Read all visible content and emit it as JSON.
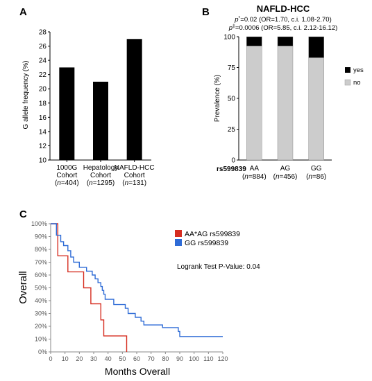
{
  "figure": {
    "panels": [
      "A",
      "B",
      "C"
    ]
  },
  "chart_data": [
    {
      "panel": "A",
      "type": "bar",
      "title": "",
      "ylabel": "G allele frequency (%)",
      "xlabel": "",
      "ylim": [
        10,
        28
      ],
      "yticks": [
        10,
        12,
        14,
        16,
        18,
        20,
        22,
        24,
        26,
        28
      ],
      "categories": [
        {
          "line1": "1000G",
          "line2": "Cohort",
          "n": "n",
          "count": "=404)"
        },
        {
          "line1": "Hepatology",
          "line2": "Cohort",
          "n": "n",
          "count": "=1295)"
        },
        {
          "line1": "NAFLD-HCC",
          "line2": "Cohort",
          "n": "n",
          "count": "=131)"
        }
      ],
      "values": [
        23,
        21,
        27
      ],
      "bar_color": "#000000",
      "grid": false
    },
    {
      "panel": "B",
      "type": "bar",
      "stacked": true,
      "title": "NAFLD-HCC",
      "subtitle_lines": [
        {
          "p": "p",
          "sup": "*",
          "rest": "=0.02 (OR=1.70, c.i. 1.08-2.70)"
        },
        {
          "p": "p",
          "sup": "‡",
          "rest": "=0.0006 (OR=5.85, c.i. 2.12-16.12)"
        }
      ],
      "ylabel": "Prevalence (%)",
      "xlabel": "rs599839",
      "ylim": [
        0,
        100
      ],
      "yticks": [
        0,
        25,
        50,
        75,
        100
      ],
      "categories": [
        {
          "label": "AA",
          "n": "n",
          "count": "=884)"
        },
        {
          "label": "AG",
          "n": "n",
          "count": "=456)"
        },
        {
          "label": "GG",
          "n": "n",
          "count": "=86)"
        }
      ],
      "series": [
        {
          "name": "no",
          "values": [
            92.5,
            92.5,
            83
          ],
          "color": "#cccccc"
        },
        {
          "name": "yes",
          "values": [
            7.5,
            7.5,
            17
          ],
          "color": "#000000"
        }
      ],
      "legend_placement": "right",
      "grid": false
    },
    {
      "panel": "C",
      "type": "line",
      "step": true,
      "title": "",
      "xlabel": "Months Overall",
      "ylabel": "Overall",
      "xlim": [
        0,
        120
      ],
      "ylim": [
        0,
        100
      ],
      "xticks": [
        0,
        10,
        20,
        30,
        40,
        50,
        60,
        70,
        80,
        90,
        100,
        110,
        120
      ],
      "yticks": [
        "0%",
        "10%",
        "20%",
        "30%",
        "40%",
        "50%",
        "60%",
        "70%",
        "80%",
        "90%",
        "100%"
      ],
      "annotation": "Logrank Test P-Value: 0.04",
      "legend_placement": "top-right",
      "series": [
        {
          "name": "AA*AG rs599839",
          "color": "#d62d20",
          "points": [
            [
              0,
              100
            ],
            [
              5,
              100
            ],
            [
              5,
              75
            ],
            [
              12,
              75
            ],
            [
              12,
              62.5
            ],
            [
              23,
              62.5
            ],
            [
              23,
              50
            ],
            [
              28,
              50
            ],
            [
              28,
              37.5
            ],
            [
              35,
              37.5
            ],
            [
              35,
              25
            ],
            [
              37,
              25
            ],
            [
              37,
              12.5
            ],
            [
              53,
              12.5
            ],
            [
              53,
              0
            ]
          ]
        },
        {
          "name": "GG rs599839",
          "color": "#2e6bd6",
          "points": [
            [
              0,
              100
            ],
            [
              4,
              100
            ],
            [
              4,
              91
            ],
            [
              7,
              91
            ],
            [
              7,
              86
            ],
            [
              9,
              86
            ],
            [
              9,
              83
            ],
            [
              12,
              83
            ],
            [
              12,
              79
            ],
            [
              14,
              79
            ],
            [
              14,
              74
            ],
            [
              16,
              74
            ],
            [
              16,
              70
            ],
            [
              20,
              70
            ],
            [
              20,
              66
            ],
            [
              25,
              66
            ],
            [
              25,
              63
            ],
            [
              29,
              63
            ],
            [
              29,
              60
            ],
            [
              31,
              60
            ],
            [
              31,
              57
            ],
            [
              33,
              57
            ],
            [
              33,
              54
            ],
            [
              35,
              54
            ],
            [
              35,
              51
            ],
            [
              36,
              51
            ],
            [
              36,
              48
            ],
            [
              37,
              48
            ],
            [
              37,
              45
            ],
            [
              38,
              45
            ],
            [
              38,
              41
            ],
            [
              44,
              41
            ],
            [
              44,
              37
            ],
            [
              52,
              37
            ],
            [
              52,
              34
            ],
            [
              54,
              34
            ],
            [
              54,
              30
            ],
            [
              59,
              30
            ],
            [
              59,
              27
            ],
            [
              63,
              27
            ],
            [
              63,
              24
            ],
            [
              65,
              24
            ],
            [
              65,
              21
            ],
            [
              78,
              21
            ],
            [
              78,
              19
            ],
            [
              89,
              19
            ],
            [
              89,
              16
            ],
            [
              90,
              16
            ],
            [
              90,
              12
            ],
            [
              120,
              12
            ]
          ]
        }
      ],
      "grid": false
    }
  ]
}
